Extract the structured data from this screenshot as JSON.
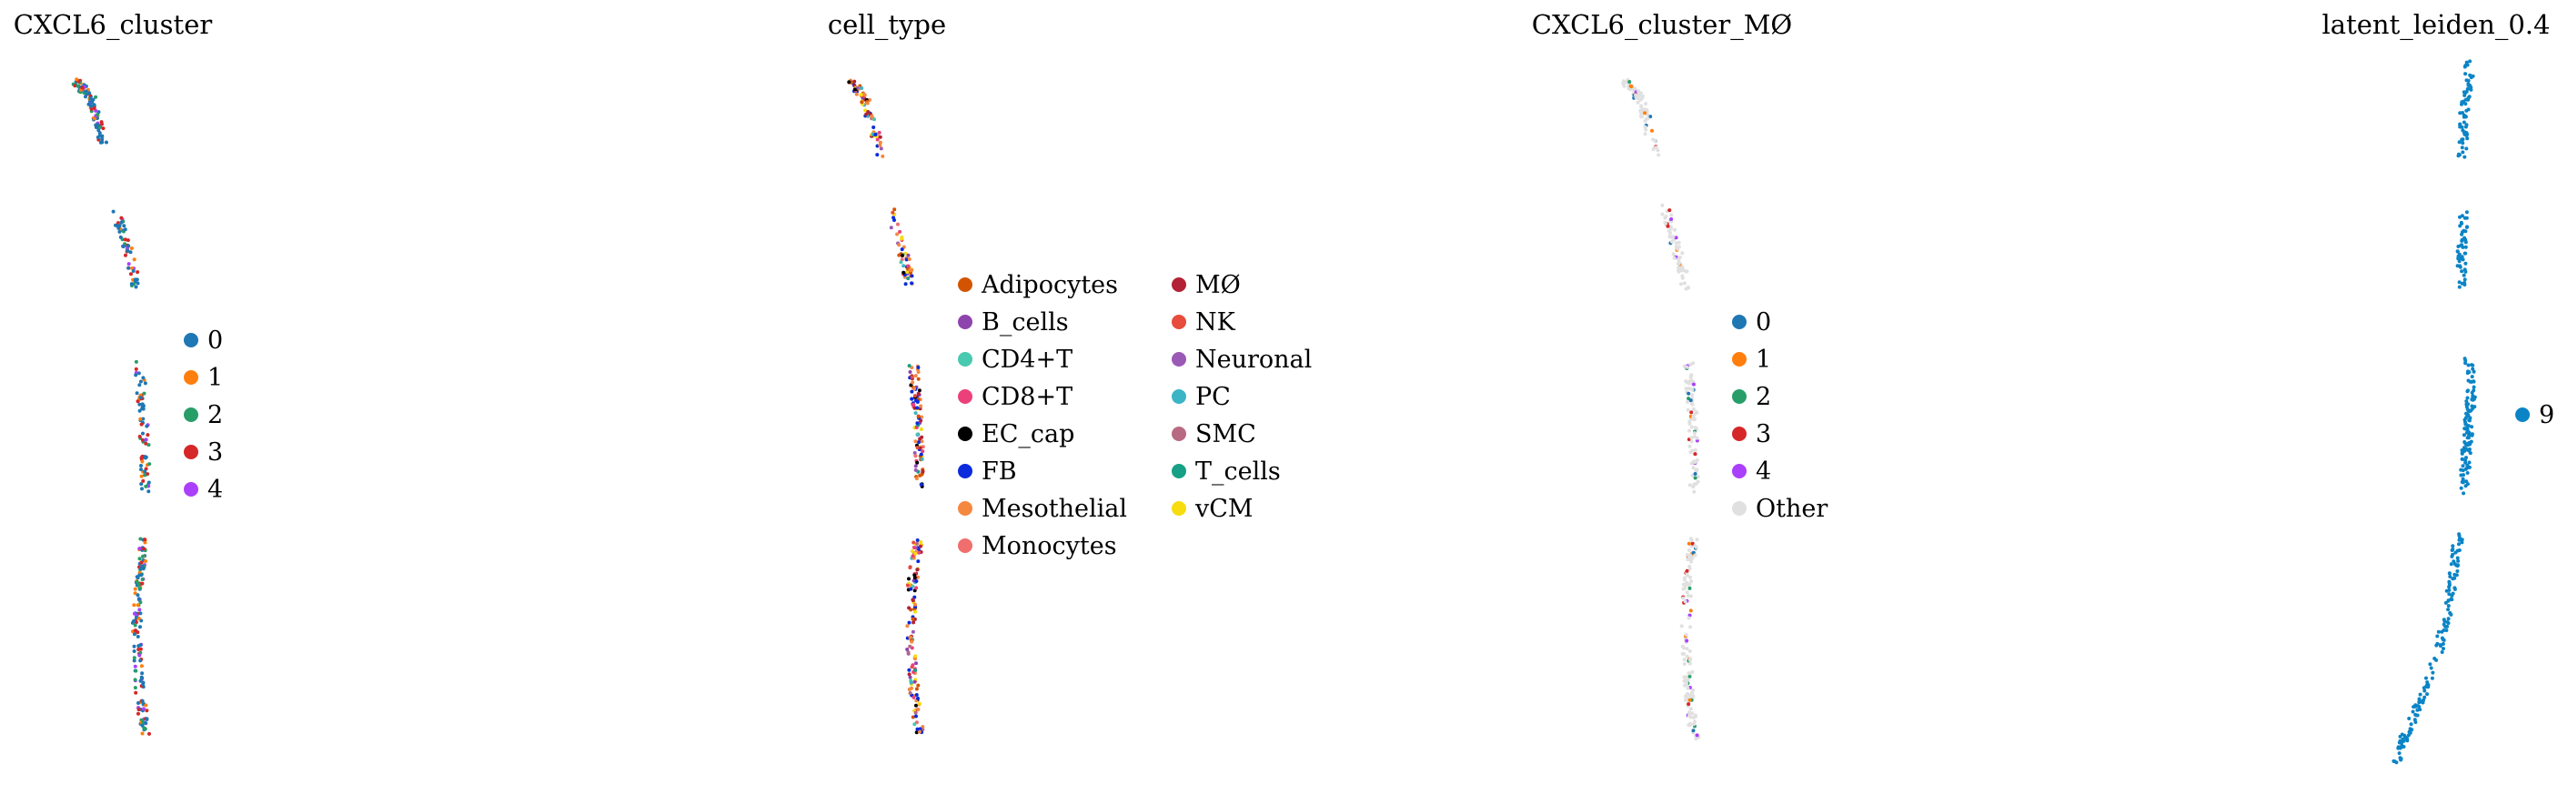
{
  "chart_data": [
    {
      "type": "scatter",
      "title": "CXCL6_cluster",
      "xlabel": "",
      "ylabel": "",
      "grid": false,
      "legend_placement": "right",
      "series": [
        {
          "name": "0",
          "color": "#1f77b4"
        },
        {
          "name": "1",
          "color": "#ff7f0e"
        },
        {
          "name": "2",
          "color": "#279e68"
        },
        {
          "name": "3",
          "color": "#d62728"
        },
        {
          "name": "4",
          "color": "#aa40fc"
        }
      ]
    },
    {
      "type": "scatter",
      "title": "cell_type",
      "xlabel": "",
      "ylabel": "",
      "grid": false,
      "legend_placement": "right",
      "series": [
        {
          "name": "Adipocytes",
          "color": "#d35400"
        },
        {
          "name": "B_cells",
          "color": "#8e44ad"
        },
        {
          "name": "CD4+T",
          "color": "#48c9b0"
        },
        {
          "name": "CD8+T",
          "color": "#ec407a"
        },
        {
          "name": "EC_cap",
          "color": "#000000"
        },
        {
          "name": "FB",
          "color": "#0b2bdc"
        },
        {
          "name": "Mesothelial",
          "color": "#f5883f"
        },
        {
          "name": "Monocytes",
          "color": "#f06e6e"
        },
        {
          "name": "MØ",
          "color": "#b22234"
        },
        {
          "name": "NK",
          "color": "#e74c3c"
        },
        {
          "name": "Neuronal",
          "color": "#9b59b6"
        },
        {
          "name": "PC",
          "color": "#3bb4c6"
        },
        {
          "name": "SMC",
          "color": "#b86a82"
        },
        {
          "name": "T_cells",
          "color": "#16a085"
        },
        {
          "name": "vCM",
          "color": "#f7dc0f"
        }
      ]
    },
    {
      "type": "scatter",
      "title": "CXCL6_cluster_MØ",
      "xlabel": "",
      "ylabel": "",
      "grid": false,
      "legend_placement": "right",
      "series": [
        {
          "name": "0",
          "color": "#1f77b4"
        },
        {
          "name": "1",
          "color": "#ff7f0e"
        },
        {
          "name": "2",
          "color": "#279e68"
        },
        {
          "name": "3",
          "color": "#d62728"
        },
        {
          "name": "4",
          "color": "#aa40fc"
        },
        {
          "name": "Other",
          "color": "#e0e0e0"
        }
      ]
    },
    {
      "type": "scatter",
      "title": "latent_leiden_0.4",
      "xlabel": "",
      "ylabel": "",
      "grid": false,
      "legend_placement": "right",
      "series": [
        {
          "name": "9",
          "color": "#0b84c6"
        }
      ]
    }
  ]
}
